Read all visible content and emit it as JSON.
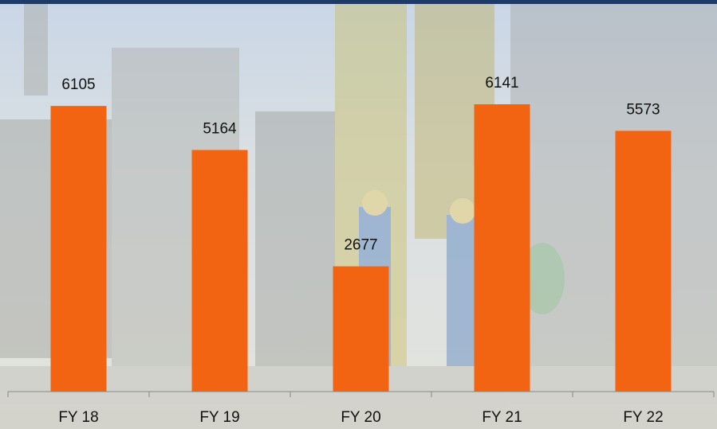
{
  "chart_data": {
    "type": "bar",
    "categories": [
      "FY 18",
      "FY 19",
      "FY 20",
      "FY 21",
      "FY 22"
    ],
    "values": [
      6105,
      5164,
      2677,
      6141,
      5573
    ],
    "color": "#f26412"
  }
}
